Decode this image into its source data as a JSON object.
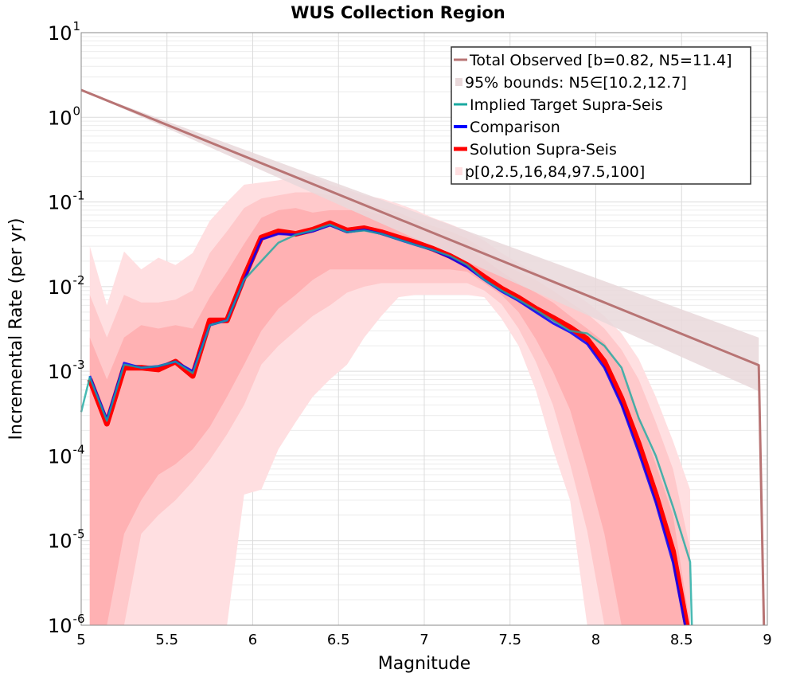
{
  "chart_data": {
    "type": "line",
    "title": "WUS Collection Region",
    "xlabel": "Magnitude",
    "ylabel": "Incremental Rate (per yr)",
    "xlim": [
      5,
      9
    ],
    "ylim": [
      1e-06,
      10
    ],
    "yscale": "log",
    "grid": true,
    "legend_position": "top-right",
    "x_ticks": [
      "5",
      "5.5",
      "6",
      "6.5",
      "7",
      "7.5",
      "8",
      "8.5",
      "9"
    ],
    "y_ticks": [
      {
        "base": "10",
        "exp": "-6",
        "value": 1e-06
      },
      {
        "base": "10",
        "exp": "-5",
        "value": 1e-05
      },
      {
        "base": "10",
        "exp": "-4",
        "value": 0.0001
      },
      {
        "base": "10",
        "exp": "-3",
        "value": 0.001
      },
      {
        "base": "10",
        "exp": "-2",
        "value": 0.01
      },
      {
        "base": "10",
        "exp": "-1",
        "value": 0.1
      },
      {
        "base": "10",
        "exp": "0",
        "value": 1
      },
      {
        "base": "10",
        "exp": "1",
        "value": 10
      }
    ],
    "colors": {
      "total_observed": "#b87474",
      "bounds_fill": "#e9d8da",
      "implied_target": "#1aa9a0",
      "comparison": "#0000ff",
      "solution": "#ff0000",
      "pband_outer": "#ffdfe1",
      "pband_mid": "#ffc9cb",
      "pband_inner": "#ffb1b3"
    },
    "legend": [
      {
        "label": "Total Observed [b=0.82, N5=11.4]",
        "key": "total_observed",
        "kind": "line"
      },
      {
        "label": "95% bounds: N5∈[10.2,12.7]",
        "key": "bounds_fill",
        "kind": "fill"
      },
      {
        "label": "Implied Target Supra-Seis",
        "key": "implied_target",
        "kind": "line"
      },
      {
        "label": "Comparison",
        "key": "comparison",
        "kind": "line"
      },
      {
        "label": "Solution Supra-Seis",
        "key": "solution",
        "kind": "line"
      },
      {
        "label": "p[0,2.5,16,84,97.5,100]",
        "key": "pband_outer",
        "kind": "fill"
      }
    ],
    "series": [
      {
        "name": "Total Observed [b=0.82, N5=11.4]",
        "key": "total_observed",
        "x": [
          5.0,
          8.95,
          8.95,
          8.98
        ],
        "y": [
          2.1,
          0.00118,
          0.00118,
          1e-06
        ]
      },
      {
        "name": "95% bounds upper",
        "key": "bounds_fill",
        "x": [
          5.0,
          8.95
        ],
        "y": [
          2.1,
          0.0025
        ]
      },
      {
        "name": "95% bounds lower",
        "key": "bounds_fill",
        "x": [
          5.0,
          8.95
        ],
        "y": [
          2.1,
          0.00058
        ]
      },
      {
        "name": "Implied Target Supra-Seis",
        "key": "implied_target",
        "x": [
          5.0,
          5.05,
          5.15,
          5.25,
          5.35,
          5.45,
          5.55,
          5.65,
          5.75,
          5.85,
          5.95,
          6.05,
          6.15,
          6.25,
          6.35,
          6.45,
          6.55,
          6.65,
          6.75,
          6.85,
          6.95,
          7.05,
          7.15,
          7.25,
          7.35,
          7.45,
          7.55,
          7.65,
          7.75,
          7.85,
          7.95,
          8.05,
          8.15,
          8.25,
          8.35,
          8.45,
          8.55,
          8.56
        ],
        "y": [
          0.00033,
          0.00085,
          0.00026,
          0.0012,
          0.0011,
          0.00115,
          0.0013,
          0.00095,
          0.0035,
          0.004,
          0.012,
          0.02,
          0.033,
          0.041,
          0.046,
          0.054,
          0.044,
          0.046,
          0.042,
          0.036,
          0.031,
          0.027,
          0.023,
          0.018,
          0.012,
          0.009,
          0.007,
          0.0053,
          0.004,
          0.003,
          0.0028,
          0.002,
          0.0011,
          0.00028,
          0.0001,
          2.5e-05,
          5.6e-06,
          1e-06
        ]
      },
      {
        "name": "Comparison",
        "key": "comparison",
        "x": [
          5.05,
          5.15,
          5.25,
          5.35,
          5.45,
          5.55,
          5.65,
          5.75,
          5.85,
          5.95,
          6.05,
          6.15,
          6.25,
          6.35,
          6.45,
          6.55,
          6.65,
          6.75,
          6.85,
          6.95,
          7.05,
          7.15,
          7.25,
          7.35,
          7.45,
          7.55,
          7.65,
          7.75,
          7.85,
          7.95,
          8.05,
          8.15,
          8.25,
          8.35,
          8.45,
          8.52
        ],
        "y": [
          0.00088,
          0.00027,
          0.00125,
          0.0011,
          0.00115,
          0.0013,
          0.001,
          0.0035,
          0.004,
          0.012,
          0.036,
          0.042,
          0.041,
          0.045,
          0.053,
          0.044,
          0.047,
          0.042,
          0.036,
          0.031,
          0.027,
          0.022,
          0.017,
          0.012,
          0.0088,
          0.0068,
          0.005,
          0.0037,
          0.0029,
          0.0021,
          0.0011,
          0.0004,
          0.00011,
          2.8e-05,
          5.5e-06,
          1e-06
        ]
      },
      {
        "name": "Solution Supra-Seis",
        "key": "solution",
        "x": [
          5.05,
          5.15,
          5.25,
          5.35,
          5.45,
          5.55,
          5.65,
          5.75,
          5.85,
          5.95,
          6.05,
          6.15,
          6.25,
          6.35,
          6.45,
          6.55,
          6.65,
          6.75,
          6.85,
          6.95,
          7.05,
          7.15,
          7.25,
          7.35,
          7.45,
          7.55,
          7.65,
          7.75,
          7.85,
          7.95,
          8.05,
          8.15,
          8.25,
          8.35,
          8.45,
          8.53
        ],
        "y": [
          0.0008,
          0.00024,
          0.0011,
          0.0011,
          0.00105,
          0.0013,
          0.00088,
          0.004,
          0.004,
          0.013,
          0.038,
          0.045,
          0.042,
          0.047,
          0.056,
          0.046,
          0.049,
          0.044,
          0.038,
          0.033,
          0.028,
          0.023,
          0.018,
          0.013,
          0.0095,
          0.0074,
          0.0055,
          0.0043,
          0.0033,
          0.0024,
          0.0013,
          0.00048,
          0.00014,
          3.5e-05,
          7.5e-06,
          1e-06
        ]
      }
    ],
    "percentile_bands": {
      "x": [
        5.05,
        5.15,
        5.25,
        5.35,
        5.45,
        5.55,
        5.65,
        5.75,
        5.85,
        5.95,
        6.05,
        6.15,
        6.25,
        6.35,
        6.45,
        6.55,
        6.65,
        6.75,
        6.85,
        6.95,
        7.05,
        7.15,
        7.25,
        7.35,
        7.45,
        7.55,
        7.65,
        7.75,
        7.85,
        7.95,
        8.05,
        8.15,
        8.25,
        8.35,
        8.45,
        8.55
      ],
      "p0": [
        1e-06,
        1e-06,
        1e-06,
        1e-06,
        1e-06,
        1e-06,
        1e-06,
        1e-06,
        1e-06,
        3.5e-05,
        4e-05,
        0.00012,
        0.00025,
        0.0005,
        0.0008,
        0.0012,
        0.0025,
        0.0045,
        0.0075,
        0.008,
        0.008,
        0.008,
        0.008,
        0.0075,
        0.0042,
        0.002,
        0.0006,
        0.00012,
        3e-05,
        1e-06,
        1e-06,
        1e-06,
        1e-06,
        1e-06,
        1e-06,
        1e-06
      ],
      "p2_5": [
        1e-06,
        1e-06,
        1e-06,
        1.2e-05,
        2e-05,
        3e-05,
        5e-05,
        9e-05,
        0.00018,
        0.0004,
        0.0012,
        0.002,
        0.003,
        0.0045,
        0.006,
        0.0085,
        0.01,
        0.011,
        0.011,
        0.011,
        0.011,
        0.011,
        0.011,
        0.009,
        0.0062,
        0.0032,
        0.0013,
        0.0004,
        8e-05,
        1.3e-05,
        1e-06,
        1e-06,
        1e-06,
        1e-06,
        1e-06,
        1e-06
      ],
      "p16": [
        1e-06,
        1e-06,
        1.2e-05,
        3e-05,
        6e-05,
        8e-05,
        0.00012,
        0.00022,
        0.0005,
        0.0012,
        0.003,
        0.0055,
        0.008,
        0.012,
        0.016,
        0.016,
        0.016,
        0.016,
        0.016,
        0.016,
        0.016,
        0.016,
        0.015,
        0.011,
        0.008,
        0.005,
        0.0024,
        0.001,
        0.00035,
        7e-05,
        1.2e-05,
        1e-06,
        1e-06,
        1e-06,
        1e-06,
        1e-06
      ],
      "p84": [
        0.0025,
        0.0008,
        0.0025,
        0.0035,
        0.0032,
        0.0035,
        0.0032,
        0.0075,
        0.015,
        0.032,
        0.065,
        0.08,
        0.085,
        0.075,
        0.08,
        0.08,
        0.08,
        0.07,
        0.06,
        0.05,
        0.043,
        0.035,
        0.029,
        0.021,
        0.015,
        0.011,
        0.0085,
        0.0065,
        0.0045,
        0.0032,
        0.0022,
        0.001,
        0.0003,
        8e-05,
        2e-05,
        1e-06
      ],
      "p97_5": [
        0.008,
        0.0025,
        0.008,
        0.0065,
        0.0065,
        0.007,
        0.009,
        0.025,
        0.045,
        0.085,
        0.11,
        0.12,
        0.13,
        0.13,
        0.12,
        0.11,
        0.1,
        0.085,
        0.075,
        0.062,
        0.052,
        0.045,
        0.037,
        0.027,
        0.019,
        0.015,
        0.012,
        0.009,
        0.0065,
        0.0048,
        0.0032,
        0.0018,
        0.0008,
        0.00025,
        7e-05,
        8e-06
      ],
      "p100": [
        0.03,
        0.006,
        0.026,
        0.016,
        0.022,
        0.018,
        0.025,
        0.06,
        0.1,
        0.16,
        0.17,
        0.18,
        0.2,
        0.2,
        0.16,
        0.14,
        0.12,
        0.11,
        0.095,
        0.08,
        0.065,
        0.055,
        0.045,
        0.035,
        0.025,
        0.019,
        0.015,
        0.012,
        0.009,
        0.0065,
        0.0045,
        0.0028,
        0.0014,
        0.0005,
        0.00015,
        4e-05
      ]
    }
  }
}
